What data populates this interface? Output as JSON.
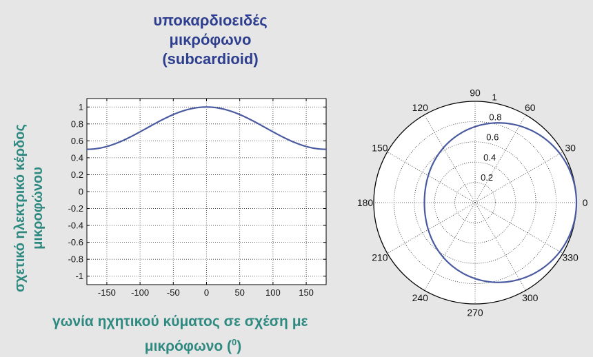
{
  "title": {
    "line1": "υποκαρδιοειδές",
    "line2": "μικρόφωνο",
    "line3": "(subcardioid)"
  },
  "ylabel": {
    "line1": "σχετικό ηλεκτρικό κέρδος",
    "line2": "μικροφώνου"
  },
  "xlabel": {
    "line1": "γωνία ηχητικού κύματος σε σχέση με",
    "line2": "μικρόφωνο (0)"
  },
  "colors": {
    "curve": "#4a5aa0",
    "title": "#2e3f8f",
    "axis_label": "#2e8a80",
    "background": "#e6e6e6"
  },
  "chart_data": [
    {
      "type": "line",
      "function": "0.75 + 0.25*cos(angle)",
      "series": [
        {
          "x": [
            -180,
            -150,
            -120,
            -90,
            -60,
            -30,
            0,
            30,
            60,
            90,
            120,
            150,
            180
          ],
          "y": [
            0.5,
            0.53,
            0.62,
            0.75,
            0.88,
            0.97,
            1.0,
            0.97,
            0.88,
            0.75,
            0.62,
            0.53,
            0.5
          ]
        }
      ],
      "xlim": [
        -180,
        180
      ],
      "ylim": [
        -1.1,
        1.1
      ],
      "xticks": [
        "-150",
        "-100",
        "-50",
        "0",
        "50",
        "100",
        "150"
      ],
      "yticks": [
        "1",
        "0.8",
        "0.6",
        "0.4",
        "0.2",
        "0",
        "-0.2",
        "-0.4",
        "-0.6",
        "-0.8",
        "-1"
      ],
      "grid": true
    },
    {
      "type": "polar",
      "function": "0.75 + 0.25*cos(angle)",
      "series": [
        {
          "theta": [
            0,
            30,
            60,
            90,
            120,
            150,
            180,
            210,
            240,
            270,
            300,
            330
          ],
          "r": [
            1.0,
            0.97,
            0.88,
            0.75,
            0.62,
            0.53,
            0.5,
            0.53,
            0.62,
            0.75,
            0.88,
            0.97
          ]
        }
      ],
      "rmax": 1,
      "angle_labels": [
        "0",
        "30",
        "60",
        "90",
        "120",
        "150",
        "180",
        "210",
        "240",
        "270",
        "300",
        "330"
      ],
      "radial_labels": [
        "0.2",
        "0.4",
        "0.6",
        "0.8",
        "1"
      ],
      "grid": true
    }
  ]
}
